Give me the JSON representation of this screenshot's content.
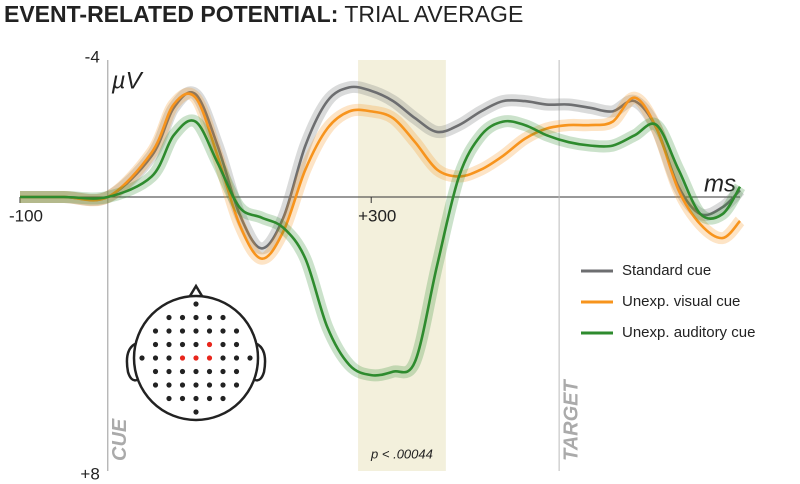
{
  "chart_data": {
    "type": "line",
    "title": "EVENT-RELATED POTENTIAL:",
    "subtitle": "TRIAL AVERAGE",
    "y_label": "µV",
    "x_label": "ms",
    "x": [
      -100,
      -50,
      0,
      50,
      75,
      100,
      125,
      150,
      175,
      200,
      225,
      250,
      275,
      300,
      325,
      350,
      375,
      400,
      425,
      450,
      475,
      500,
      525,
      550,
      575,
      600,
      625,
      650,
      675,
      700,
      720
    ],
    "series": [
      {
        "name": "Standard cue",
        "color": "#6d6e70",
        "values": [
          0,
          0,
          0,
          -1.2,
          -2.6,
          -3.0,
          -1.5,
          0.5,
          1.5,
          0.6,
          -1.5,
          -2.8,
          -3.2,
          -3.1,
          -2.8,
          -2.3,
          -1.9,
          -2.1,
          -2.5,
          -2.8,
          -2.8,
          -2.7,
          -2.7,
          -2.6,
          -2.5,
          -2.8,
          -2.0,
          -0.3,
          0.5,
          0.3,
          -0.2
        ]
      },
      {
        "name": "Unexp. visual cue",
        "color": "#f7941d",
        "values": [
          0,
          0,
          0,
          -1.3,
          -2.7,
          -2.9,
          -1.2,
          0.8,
          1.8,
          1.0,
          -0.8,
          -2.0,
          -2.5,
          -2.5,
          -2.3,
          -1.6,
          -0.8,
          -0.6,
          -0.8,
          -1.2,
          -1.7,
          -2.0,
          -2.1,
          -2.1,
          -2.2,
          -2.9,
          -2.0,
          -0.2,
          0.8,
          1.2,
          0.7
        ]
      },
      {
        "name": "Unexp. auditory cue",
        "color": "#2e8b2e",
        "values": [
          0,
          0,
          0,
          -0.6,
          -1.8,
          -2.2,
          -1.0,
          0.3,
          0.6,
          0.9,
          1.8,
          3.8,
          4.9,
          5.2,
          5.1,
          4.8,
          2.0,
          -0.6,
          -1.8,
          -2.2,
          -2.1,
          -1.8,
          -1.6,
          -1.5,
          -1.5,
          -1.8,
          -2.1,
          -0.8,
          0.5,
          0.5,
          -0.3
        ]
      }
    ],
    "xlim": [
      -100,
      720
    ],
    "ylim": [
      -4,
      8
    ],
    "y_inverted": true,
    "xticks": [
      -100,
      {
        "value": 300,
        "label": "+300"
      }
    ],
    "yticks": [
      -4,
      {
        "value": 8,
        "label": "+8"
      }
    ],
    "highlight": {
      "xlim": [
        285,
        385
      ],
      "label": "p < .00044",
      "color": "#f3f0dc"
    },
    "events": [
      {
        "x": 0,
        "label": "CUE"
      },
      {
        "x": 514,
        "label": "TARGET"
      }
    ],
    "legend": "right"
  }
}
